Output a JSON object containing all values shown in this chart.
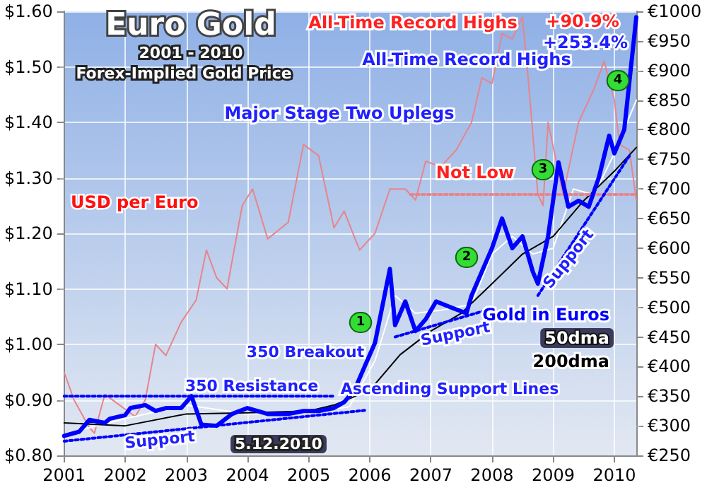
{
  "chart_data": {
    "type": "line",
    "title": "Euro Gold",
    "subtitle": "2001 - 2010",
    "annotations": [
      "Forex-Implied Gold Price",
      "All-Time Record Highs",
      "+90.9%",
      "+253.4%",
      "All-Time Record Highs",
      "Major Stage Two Uplegs",
      "Not Low",
      "350 Breakout",
      "350 Resistance",
      "Support",
      "Support",
      "Support",
      "Ascending Support Lines",
      "5.12.2010",
      "1",
      "2",
      "3",
      "4"
    ],
    "xlim": [
      "2001-01-01",
      "2010-05-12"
    ],
    "xticks": [
      "2001",
      "2002",
      "2003",
      "2004",
      "2005",
      "2006",
      "2007",
      "2008",
      "2009",
      "2010"
    ],
    "ylim": [
      0.8,
      1.6
    ],
    "yticks": [
      {
        "value": 0.8,
        "label": "$0.80"
      },
      {
        "value": 0.9,
        "label": "$0.90"
      },
      {
        "value": 1.0,
        "label": "$1.00"
      },
      {
        "value": 1.1,
        "label": "$1.10"
      },
      {
        "value": 1.2,
        "label": "$1.20"
      },
      {
        "value": 1.3,
        "label": "$1.30"
      },
      {
        "value": 1.4,
        "label": "$1.40"
      },
      {
        "value": 1.5,
        "label": "$1.50"
      },
      {
        "value": 1.6,
        "label": "$1.60"
      }
    ],
    "y2lim": [
      250,
      1000
    ],
    "y2ticks": [
      {
        "value": 250,
        "label": "€250"
      },
      {
        "value": 300,
        "label": "€300"
      },
      {
        "value": 350,
        "label": "€350"
      },
      {
        "value": 400,
        "label": "€400"
      },
      {
        "value": 450,
        "label": "€450"
      },
      {
        "value": 500,
        "label": "€500"
      },
      {
        "value": 550,
        "label": "€550"
      },
      {
        "value": 600,
        "label": "€600"
      },
      {
        "value": 650,
        "label": "€650"
      },
      {
        "value": 700,
        "label": "€700"
      },
      {
        "value": 750,
        "label": "€750"
      },
      {
        "value": 800,
        "label": "€800"
      },
      {
        "value": 850,
        "label": "€850"
      },
      {
        "value": 900,
        "label": "€900"
      },
      {
        "value": 950,
        "label": "€950"
      },
      {
        "value": 1000,
        "label": "€1000"
      }
    ],
    "grid": true,
    "legend": "bottom right",
    "marker": "none",
    "series": [
      {
        "name": "USD per Euro",
        "color": "#e8848c",
        "x": [
          "2001-01",
          "2001-03",
          "2001-06",
          "2001-07",
          "2001-09",
          "2001-12",
          "2002-03",
          "2002-05",
          "2002-07",
          "2002-09",
          "2002-12",
          "2003-03",
          "2003-05",
          "2003-07",
          "2003-09",
          "2003-12",
          "2004-02",
          "2004-05",
          "2004-09",
          "2004-12",
          "2005-03",
          "2005-06",
          "2005-08",
          "2005-11",
          "2006-02",
          "2006-05",
          "2006-08",
          "2006-10",
          "2006-12",
          "2007-03",
          "2007-06",
          "2007-09",
          "2007-11",
          "2008-01",
          "2008-03",
          "2008-05",
          "2008-07",
          "2008-08",
          "2008-10",
          "2008-11",
          "2008-12",
          "2009-03",
          "2009-06",
          "2009-09",
          "2009-11",
          "2010-01",
          "2010-02",
          "2010-04",
          "2010-05-12"
        ],
        "values": [
          0.95,
          0.9,
          0.85,
          0.84,
          0.91,
          0.89,
          0.87,
          0.9,
          1.0,
          0.98,
          1.04,
          1.08,
          1.17,
          1.12,
          1.1,
          1.25,
          1.28,
          1.19,
          1.22,
          1.36,
          1.34,
          1.21,
          1.24,
          1.17,
          1.2,
          1.28,
          1.28,
          1.26,
          1.33,
          1.32,
          1.35,
          1.4,
          1.48,
          1.47,
          1.56,
          1.55,
          1.59,
          1.49,
          1.27,
          1.25,
          1.4,
          1.27,
          1.4,
          1.46,
          1.51,
          1.44,
          1.36,
          1.35,
          1.26
        ]
      },
      {
        "name": "Gold in Euros",
        "color": "#0000ff",
        "axis": "y2",
        "x": [
          "2001-01",
          "2001-04",
          "2001-06",
          "2001-09",
          "2001-10",
          "2002-01",
          "2002-02",
          "2002-05",
          "2002-07",
          "2002-09",
          "2002-12",
          "2003-02",
          "2003-04",
          "2003-07",
          "2003-10",
          "2004-01",
          "2004-05",
          "2004-09",
          "2004-12",
          "2005-03",
          "2005-06",
          "2005-08",
          "2005-10",
          "2005-12",
          "2006-01",
          "2006-02",
          "2006-05",
          "2006-06",
          "2006-08",
          "2006-10",
          "2006-12",
          "2007-02",
          "2007-05",
          "2007-08",
          "2007-09",
          "2007-11",
          "2008-01",
          "2008-03",
          "2008-05",
          "2008-07",
          "2008-09",
          "2008-10",
          "2008-12",
          "2009-02",
          "2009-04",
          "2009-06",
          "2009-08",
          "2009-10",
          "2009-12",
          "2010-01",
          "2010-03",
          "2010-05-12"
        ],
        "values": [
          283,
          290,
          310,
          305,
          312,
          318,
          330,
          335,
          325,
          330,
          330,
          350,
          302,
          300,
          320,
          330,
          320,
          320,
          325,
          325,
          330,
          340,
          360,
          400,
          420,
          440,
          565,
          470,
          510,
          460,
          480,
          510,
          500,
          490,
          520,
          560,
          600,
          650,
          600,
          620,
          560,
          540,
          620,
          745,
          670,
          680,
          670,
          720,
          790,
          760,
          800,
          990
        ]
      },
      {
        "name": "50dma",
        "color": "#ffffff",
        "axis": "y2",
        "x": [
          "2001-03",
          "2002-01",
          "2003-01",
          "2004-01",
          "2005-01",
          "2005-09",
          "2006-02",
          "2006-06",
          "2006-10",
          "2007-03",
          "2007-09",
          "2008-01",
          "2008-05",
          "2008-09",
          "2009-01",
          "2009-05",
          "2009-09",
          "2010-01",
          "2010-05-12"
        ],
        "values": [
          290,
          312,
          335,
          320,
          322,
          332,
          410,
          520,
          490,
          495,
          505,
          590,
          620,
          590,
          600,
          700,
          690,
          760,
          850
        ]
      },
      {
        "name": "200dma",
        "color": "#000000",
        "axis": "y2",
        "x": [
          "2001-01",
          "2002-01",
          "2003-01",
          "2004-01",
          "2005-01",
          "2005-06",
          "2006-01",
          "2006-07",
          "2007-01",
          "2007-07",
          "2008-01",
          "2008-07",
          "2009-01",
          "2009-07",
          "2010-01",
          "2010-05-12"
        ],
        "values": [
          305,
          300,
          320,
          322,
          325,
          335,
          360,
          420,
          460,
          490,
          540,
          590,
          620,
          680,
          730,
          770
        ]
      },
      {
        "color": "#e8848c",
        "line_style": "dotted",
        "x": [
          "2006-09",
          "2010-05-12"
        ],
        "values": [
          1.27,
          1.27
        ]
      },
      {
        "color": "#0000ff",
        "axis": "y2",
        "line_style": "dotted",
        "x": [
          "2001-01",
          "2005-06"
        ],
        "values": [
          350,
          350
        ]
      },
      {
        "color": "#0000ff",
        "axis": "y2",
        "line_style": "dotted",
        "x": [
          "2001-01",
          "2005-12"
        ],
        "values": [
          274,
          326
        ]
      },
      {
        "color": "#0000ff",
        "axis": "y2",
        "line_style": "dotted",
        "x": [
          "2006-06",
          "2008-01"
        ],
        "values": [
          450,
          498
        ]
      },
      {
        "color": "#0000ff",
        "axis": "y2",
        "line_style": "dotted",
        "x": [
          "2008-10",
          "2010-04"
        ],
        "values": [
          520,
          756
        ]
      }
    ]
  }
}
